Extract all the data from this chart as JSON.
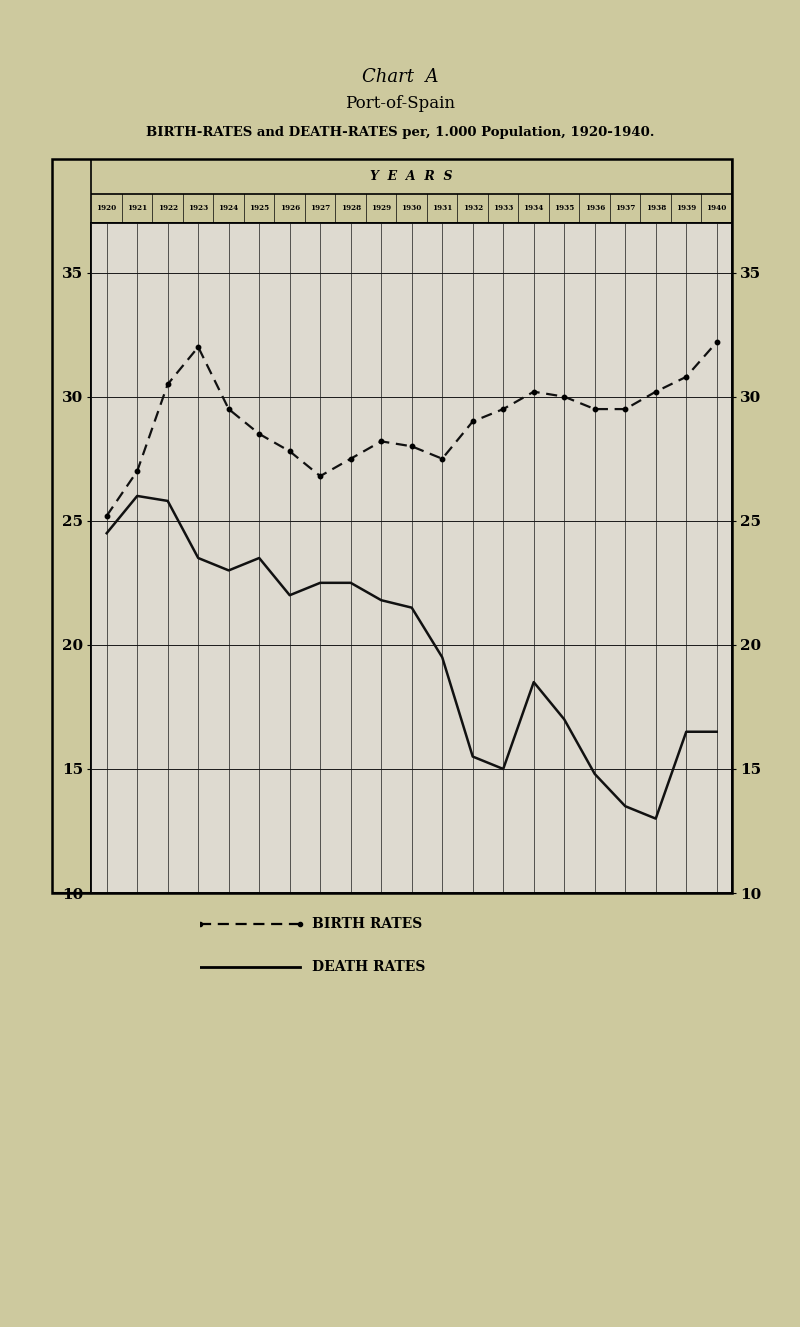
{
  "title1": "Chart  A",
  "title2": "Port-of-Spain",
  "title3": "BIRTH-RATES and DEATH-RATES per, 1.000 Population, 1920-1940.",
  "years": [
    1920,
    1921,
    1922,
    1923,
    1924,
    1925,
    1926,
    1927,
    1928,
    1929,
    1930,
    1931,
    1932,
    1933,
    1934,
    1935,
    1936,
    1937,
    1938,
    1939,
    1940
  ],
  "birth_rates": [
    25.2,
    27.0,
    30.5,
    32.0,
    29.5,
    28.5,
    27.8,
    26.8,
    27.5,
    28.2,
    28.0,
    27.5,
    29.0,
    29.5,
    30.2,
    30.0,
    29.5,
    29.5,
    30.2,
    30.8,
    32.2
  ],
  "death_rates": [
    24.5,
    26.0,
    25.8,
    23.5,
    23.0,
    23.5,
    22.0,
    22.5,
    22.5,
    21.8,
    21.5,
    19.5,
    15.5,
    15.0,
    18.5,
    17.0,
    14.8,
    13.5,
    13.0,
    16.5,
    16.5
  ],
  "ylim_min": 10,
  "ylim_max": 37,
  "yticks": [
    10,
    15,
    20,
    25,
    30,
    35
  ],
  "background_color": "#cdc99e",
  "plot_bg_color": "#dedad0",
  "line_color": "#111111",
  "legend_birth": "BIRTH RATES",
  "legend_death": "DEATH RATES",
  "years_label": "Y  E  A  R  S"
}
